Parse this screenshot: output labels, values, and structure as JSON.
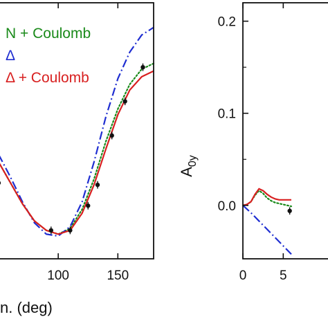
{
  "colors": {
    "green": "#1a8a1a",
    "blue": "#1f2ed1",
    "red": "#d81f1f",
    "data": "#111111",
    "axis": "#111111"
  },
  "chart_data": [
    {
      "id": "left",
      "type": "line",
      "xlabel": "θc.m. (deg)",
      "xlabel_visible": "n. (deg)",
      "ylabel": "",
      "xlim": [
        50,
        180
      ],
      "ylim": [
        -0.35,
        1.0
      ],
      "xticks": [
        100,
        150
      ],
      "legend": [
        {
          "label": "N + Coulomb",
          "style": "dotted",
          "color_key": "green"
        },
        {
          "label": "Δ",
          "style": "dashdot",
          "color_key": "blue"
        },
        {
          "label": "Δ + Coulomb",
          "style": "solid",
          "color_key": "red"
        }
      ],
      "series": [
        {
          "name": "N + Coulomb",
          "style": "dotted",
          "color_key": "green",
          "x": [
            50,
            60,
            70,
            80,
            90,
            100,
            110,
            120,
            130,
            140,
            150,
            160,
            170,
            180
          ],
          "y": [
            0.16,
            0.05,
            -0.06,
            -0.15,
            -0.2,
            -0.22,
            -0.19,
            -0.09,
            0.07,
            0.27,
            0.44,
            0.57,
            0.65,
            0.68
          ]
        },
        {
          "name": "Δ",
          "style": "dashdot",
          "color_key": "blue",
          "x": [
            50,
            60,
            70,
            80,
            90,
            100,
            110,
            120,
            130,
            140,
            150,
            160,
            170,
            180
          ],
          "y": [
            0.2,
            0.08,
            -0.05,
            -0.16,
            -0.22,
            -0.23,
            -0.18,
            -0.05,
            0.16,
            0.4,
            0.6,
            0.74,
            0.83,
            0.87
          ]
        },
        {
          "name": "Δ + Coulomb",
          "style": "solid",
          "color_key": "red",
          "x": [
            50,
            60,
            70,
            80,
            90,
            100,
            110,
            120,
            130,
            140,
            150,
            160,
            170,
            180
          ],
          "y": [
            0.16,
            0.05,
            -0.06,
            -0.15,
            -0.2,
            -0.22,
            -0.2,
            -0.11,
            0.04,
            0.23,
            0.41,
            0.54,
            0.61,
            0.64
          ]
        }
      ],
      "points": {
        "x": [
          50,
          94,
          110,
          125,
          133,
          145,
          156,
          171
        ],
        "y": [
          0.05,
          -0.2,
          -0.2,
          -0.07,
          0.04,
          0.3,
          0.48,
          0.66
        ],
        "err": [
          0.02,
          0.02,
          0.02,
          0.02,
          0.02,
          0.02,
          0.02,
          0.02
        ]
      }
    },
    {
      "id": "right",
      "type": "line",
      "xlabel": "",
      "ylabel": "A0y",
      "ylabel_main": "A",
      "ylabel_sub": "0y",
      "xlim": [
        0,
        12
      ],
      "ylim": [
        -0.058,
        0.22
      ],
      "yticks": [
        0.0,
        0.1,
        0.2
      ],
      "yticklabels": [
        "0.0",
        "0.1",
        "0.2"
      ],
      "xticks": [
        0,
        5
      ],
      "xticklabels": [
        "0",
        "5"
      ],
      "series": [
        {
          "name": "N + Coulomb",
          "style": "dotted",
          "color_key": "green",
          "x": [
            0,
            0.5,
            1.0,
            1.5,
            2.0,
            2.5,
            3.0,
            3.5,
            4.0,
            4.5,
            5.0,
            5.5,
            6.0
          ],
          "y": [
            0.0,
            0.001,
            0.004,
            0.011,
            0.016,
            0.013,
            0.008,
            0.005,
            0.003,
            0.002,
            0.001,
            0.0,
            -0.001
          ]
        },
        {
          "name": "Δ",
          "style": "dashdot",
          "color_key": "blue",
          "x": [
            0,
            1.0,
            2.0,
            3.0,
            4.0,
            5.0,
            6.0
          ],
          "y": [
            0.0,
            -0.008,
            -0.017,
            -0.026,
            -0.035,
            -0.044,
            -0.053
          ]
        },
        {
          "name": "Δ + Coulomb",
          "style": "solid",
          "color_key": "red",
          "x": [
            0,
            0.5,
            1.0,
            1.5,
            2.0,
            2.5,
            3.0,
            3.5,
            4.0,
            4.5,
            5.0,
            5.5,
            6.0
          ],
          "y": [
            0.0,
            0.001,
            0.004,
            0.012,
            0.018,
            0.016,
            0.012,
            0.009,
            0.007,
            0.006,
            0.006,
            0.006,
            0.006
          ]
        }
      ],
      "points": {
        "x": [
          5.8
        ],
        "y": [
          -0.006
        ],
        "err": [
          0.004
        ]
      }
    }
  ]
}
